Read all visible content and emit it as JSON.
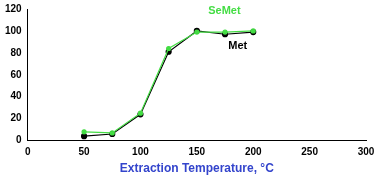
{
  "chart_data": {
    "type": "line",
    "x_label": "Extraction Temperature, °C",
    "x": [
      50,
      75,
      100,
      125,
      150,
      175,
      200
    ],
    "series": [
      {
        "name": "SeMet",
        "color": "#44dd44",
        "marker": "circle",
        "values": [
          8,
          7,
          25,
          84,
          99,
          99,
          100
        ]
      },
      {
        "name": "Met",
        "color": "#000000",
        "marker": "circle",
        "values": [
          4,
          6,
          24,
          81,
          100,
          97,
          99
        ]
      }
    ],
    "xlim": [
      0,
      300
    ],
    "xticks": [
      0,
      50,
      100,
      150,
      200,
      250,
      300
    ],
    "ylim": [
      0,
      120
    ],
    "yticks": [
      0,
      20,
      40,
      60,
      80,
      100,
      120
    ],
    "grid": false
  }
}
